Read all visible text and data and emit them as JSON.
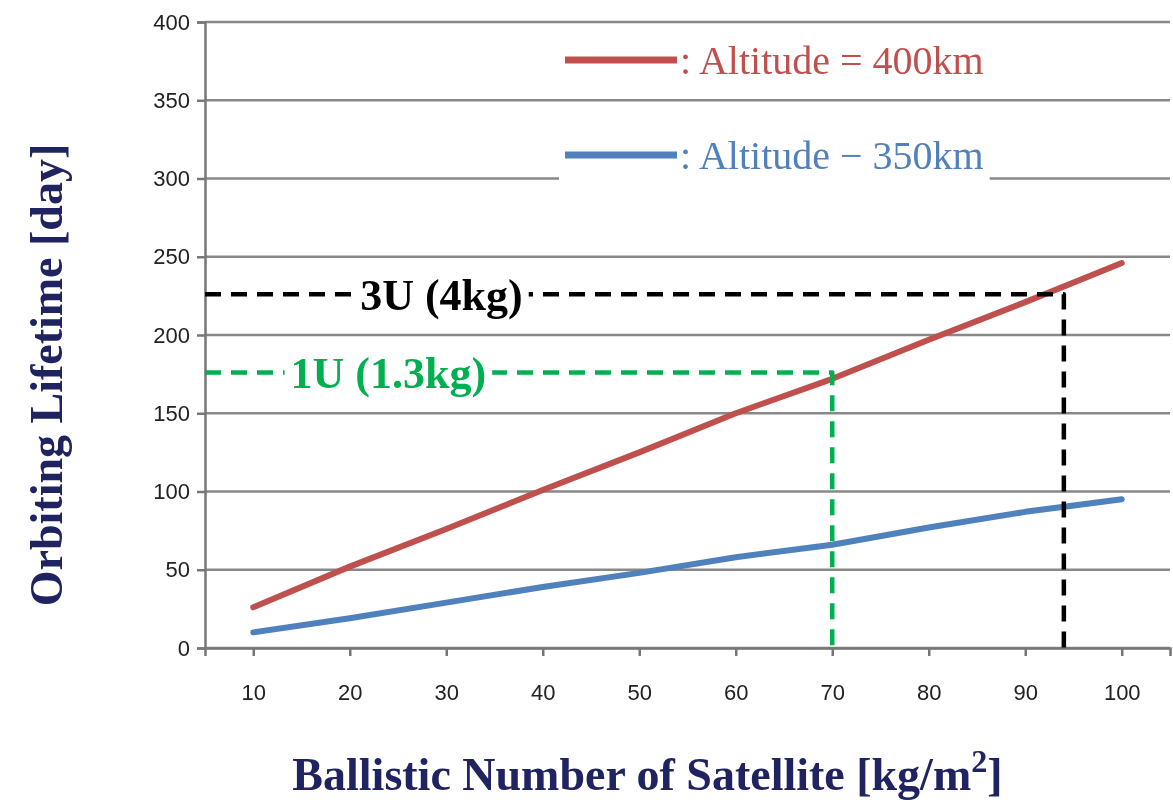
{
  "chart_data": {
    "type": "line",
    "xlabel": "Ballistic Number of Satellite [kg/m$^{2}$]",
    "ylabel": "Orbiting Lifetime [day]",
    "xlim": [
      5,
      105
    ],
    "xticks": [
      10,
      20,
      30,
      40,
      50,
      60,
      70,
      80,
      90,
      100
    ],
    "ylim": [
      0,
      400
    ],
    "yticks": [
      0,
      50,
      100,
      150,
      200,
      250,
      300,
      350,
      400
    ],
    "grid": "y",
    "legend": "top right",
    "marker": "none",
    "x": [
      10,
      20,
      30,
      40,
      50,
      60,
      70,
      80,
      90,
      100
    ],
    "series": [
      {
        "name": ": Altitude = 400km",
        "color": "#c0504d",
        "values": [
          26,
          52,
          76,
          101,
          125,
          150,
          172,
          197,
          221,
          246
        ]
      },
      {
        "name": ": Altitude − 350km",
        "color": "#4f81bd",
        "values": [
          10,
          19,
          29,
          39,
          48,
          58,
          66,
          77,
          87,
          95
        ]
      },
      {
        "color": "#000000",
        "line_style": "dashed",
        "x": [
          5,
          94,
          94
        ],
        "values": [
          226,
          226,
          0
        ]
      },
      {
        "color": "#00b050",
        "line_style": "dashed",
        "x": [
          5,
          70,
          70
        ],
        "values": [
          176,
          176,
          0
        ]
      }
    ],
    "annotations": [
      {
        "text": "3U (4kg)",
        "x": 29.5,
        "y": 226
      },
      {
        "text": "1U (1.3kg)",
        "x": 24,
        "y": 176
      }
    ]
  }
}
